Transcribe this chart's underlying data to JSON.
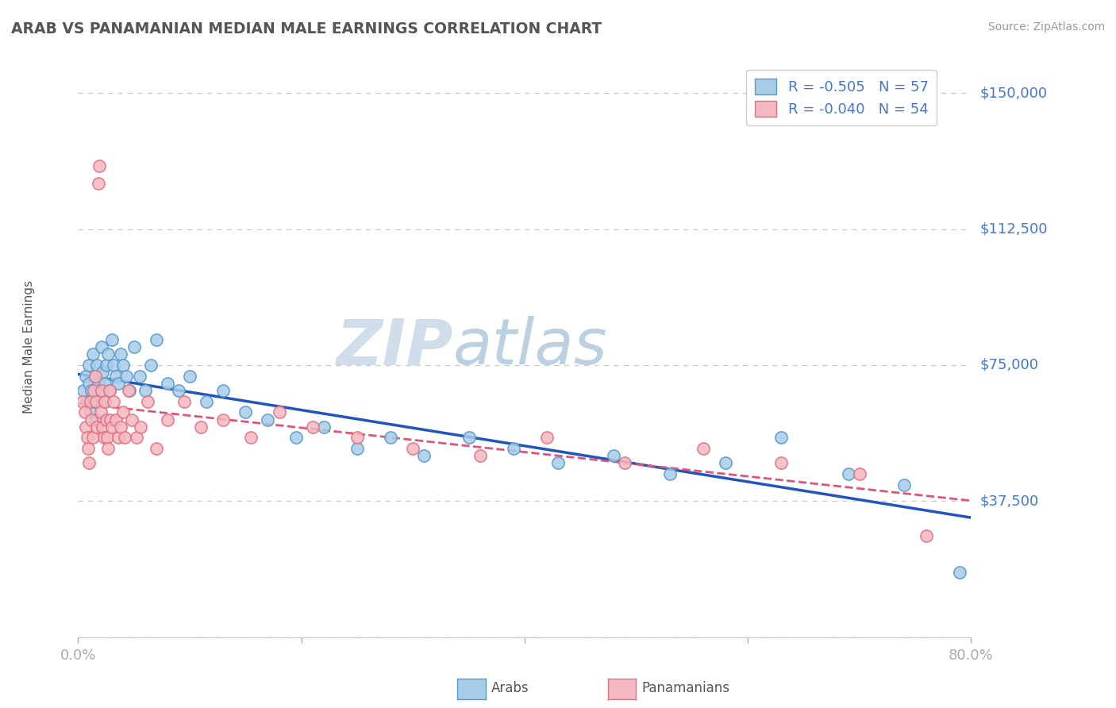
{
  "title": "ARAB VS PANAMANIAN MEDIAN MALE EARNINGS CORRELATION CHART",
  "source": "Source: ZipAtlas.com",
  "ylabel": "Median Male Earnings",
  "yticks": [
    0,
    37500,
    75000,
    112500,
    150000
  ],
  "ytick_labels": [
    "",
    "$37,500",
    "$75,000",
    "$112,500",
    "$150,000"
  ],
  "xmin": 0.0,
  "xmax": 0.8,
  "ymin": 0,
  "ymax": 160000,
  "arab_R": -0.505,
  "arab_N": 57,
  "pana_R": -0.04,
  "pana_N": 54,
  "arab_dot_color": "#a8cce8",
  "arab_dot_edge": "#5599cc",
  "pana_dot_color": "#f5b8c0",
  "pana_dot_edge": "#e07080",
  "arab_line_color": "#2255bb",
  "pana_line_color": "#dd5577",
  "bg_color": "#ffffff",
  "grid_color": "#c8c8c8",
  "title_color": "#555555",
  "right_tick_color": "#4477cc",
  "bottom_tick_color": "#4477cc",
  "ylabel_color": "#555555",
  "watermark_zip_color": "#ccd8e8",
  "watermark_atlas_color": "#b8d0e0",
  "source_color": "#999999",
  "legend_text_color": "#4477cc",
  "legend_border_color": "#cccccc",
  "bottom_legend_color": "#555555",
  "arab_x": [
    0.005,
    0.007,
    0.008,
    0.01,
    0.01,
    0.011,
    0.012,
    0.013,
    0.014,
    0.015,
    0.016,
    0.017,
    0.018,
    0.019,
    0.02,
    0.021,
    0.022,
    0.023,
    0.024,
    0.025,
    0.027,
    0.028,
    0.03,
    0.032,
    0.034,
    0.036,
    0.038,
    0.04,
    0.043,
    0.046,
    0.05,
    0.055,
    0.06,
    0.065,
    0.07,
    0.08,
    0.09,
    0.1,
    0.115,
    0.13,
    0.15,
    0.17,
    0.195,
    0.22,
    0.25,
    0.28,
    0.31,
    0.35,
    0.39,
    0.43,
    0.48,
    0.53,
    0.58,
    0.63,
    0.69,
    0.74,
    0.79
  ],
  "arab_y": [
    68000,
    72000,
    65000,
    70000,
    75000,
    62000,
    68000,
    78000,
    65000,
    72000,
    60000,
    75000,
    70000,
    65000,
    68000,
    80000,
    73000,
    65000,
    70000,
    75000,
    78000,
    68000,
    82000,
    75000,
    72000,
    70000,
    78000,
    75000,
    72000,
    68000,
    80000,
    72000,
    68000,
    75000,
    82000,
    70000,
    68000,
    72000,
    65000,
    68000,
    62000,
    60000,
    55000,
    58000,
    52000,
    55000,
    50000,
    55000,
    52000,
    48000,
    50000,
    45000,
    48000,
    55000,
    45000,
    42000,
    18000
  ],
  "pana_x": [
    0.004,
    0.006,
    0.007,
    0.008,
    0.009,
    0.01,
    0.011,
    0.012,
    0.013,
    0.014,
    0.015,
    0.016,
    0.017,
    0.018,
    0.019,
    0.02,
    0.021,
    0.022,
    0.023,
    0.024,
    0.025,
    0.026,
    0.027,
    0.028,
    0.029,
    0.03,
    0.032,
    0.034,
    0.036,
    0.038,
    0.04,
    0.042,
    0.045,
    0.048,
    0.052,
    0.056,
    0.062,
    0.07,
    0.08,
    0.095,
    0.11,
    0.13,
    0.155,
    0.18,
    0.21,
    0.25,
    0.3,
    0.36,
    0.42,
    0.49,
    0.56,
    0.63,
    0.7,
    0.76
  ],
  "pana_y": [
    65000,
    62000,
    58000,
    55000,
    52000,
    48000,
    65000,
    60000,
    55000,
    68000,
    72000,
    65000,
    58000,
    125000,
    130000,
    62000,
    68000,
    58000,
    55000,
    65000,
    60000,
    55000,
    52000,
    68000,
    60000,
    58000,
    65000,
    60000,
    55000,
    58000,
    62000,
    55000,
    68000,
    60000,
    55000,
    58000,
    65000,
    52000,
    60000,
    65000,
    58000,
    60000,
    55000,
    62000,
    58000,
    55000,
    52000,
    50000,
    55000,
    48000,
    52000,
    48000,
    45000,
    28000
  ]
}
